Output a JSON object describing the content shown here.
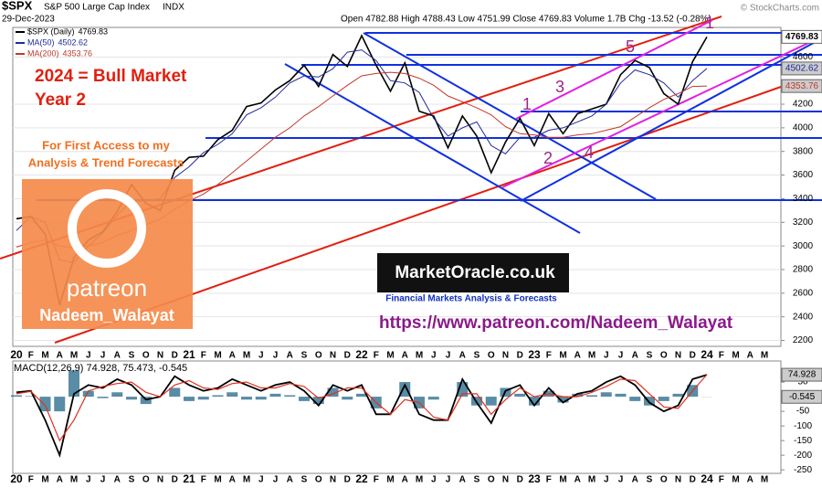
{
  "header": {
    "symbol": "$SPX",
    "name": "S&P 500 Large Cap Index",
    "exchange": "INDX",
    "date": "29-Dec-2023",
    "quote": "Open 4782.88  High 4788.43  Low 4751.99  Close 4769.83  Volume 1.7B  Chg -13.52 (-0.28%)",
    "credit": "© StockCharts.com"
  },
  "annotations": {
    "headline1": "2024 = Bull Market",
    "headline2": "Year 2",
    "promo1": "For First Access to my",
    "promo2": "Analysis & Trend Forecasts",
    "patreon": "patreon",
    "author": "Nadeem_Walayat",
    "logo": "MarketOracle.co.uk",
    "logo_sub": "Financial Markets Analysis & Forecasts",
    "url": "https://www.patreon.com/Nadeem_Walayat",
    "waves": [
      "1",
      "2",
      "3",
      "4",
      "5",
      "1"
    ]
  },
  "chart_data": [
    {
      "type": "line",
      "ylim": [
        2150,
        4850
      ],
      "yticks": [
        2200,
        2400,
        2600,
        2800,
        3000,
        3200,
        3400,
        3600,
        3800,
        4000,
        4200,
        4600
      ],
      "grid": true,
      "categories": [
        "20",
        "F",
        "M",
        "A",
        "M",
        "J",
        "J",
        "A",
        "S",
        "O",
        "N",
        "D",
        "21",
        "F",
        "M",
        "A",
        "M",
        "J",
        "J",
        "A",
        "S",
        "O",
        "N",
        "D",
        "22",
        "F",
        "M",
        "A",
        "M",
        "J",
        "J",
        "A",
        "S",
        "O",
        "N",
        "D",
        "23",
        "F",
        "M",
        "A",
        "M",
        "J",
        "J",
        "A",
        "S",
        "O",
        "N",
        "D",
        "24",
        "F",
        "M",
        "A",
        "M"
      ],
      "series": [
        {
          "name": "$SPX (Daily)",
          "color": "#000000",
          "values": [
            3230,
            3250,
            3100,
            2500,
            2900,
            3050,
            3120,
            3290,
            3520,
            3360,
            3300,
            3640,
            3750,
            3760,
            3900,
            3980,
            4180,
            4210,
            4320,
            4400,
            4530,
            4350,
            4620,
            4520,
            4780,
            4530,
            4310,
            4550,
            4140,
            4100,
            3830,
            4100,
            3930,
            3620,
            3880,
            4080,
            3850,
            4120,
            3950,
            4120,
            4160,
            4200,
            4450,
            4570,
            4510,
            4290,
            4200,
            4560,
            4769.83,
            null,
            null,
            null,
            null
          ]
        },
        {
          "name": "MA(50)",
          "color": "#1f2a9a",
          "values": [
            3130,
            3250,
            3200,
            2880,
            2860,
            3000,
            3110,
            3260,
            3380,
            3380,
            3400,
            3580,
            3670,
            3790,
            3860,
            3950,
            4110,
            4170,
            4260,
            4380,
            4440,
            4430,
            4500,
            4640,
            4660,
            4570,
            4400,
            4380,
            4300,
            4080,
            3930,
            4000,
            4050,
            3850,
            3780,
            3920,
            3920,
            3980,
            4000,
            4050,
            4100,
            4200,
            4380,
            4490,
            4450,
            4380,
            4260,
            4400,
            4502.62,
            null,
            null,
            null,
            null
          ]
        },
        {
          "name": "MA(200)",
          "color": "#c0392b",
          "values": [
            2990,
            3030,
            3050,
            3000,
            2980,
            3000,
            3030,
            3090,
            3130,
            3180,
            3230,
            3310,
            3380,
            3440,
            3520,
            3620,
            3720,
            3820,
            3920,
            4000,
            4100,
            4180,
            4270,
            4360,
            4440,
            4460,
            4470,
            4460,
            4420,
            4360,
            4270,
            4220,
            4170,
            4110,
            4010,
            3950,
            3940,
            3920,
            3920,
            3940,
            3950,
            3980,
            4010,
            4090,
            4170,
            4240,
            4290,
            4350,
            4353.76,
            null,
            null,
            null,
            null
          ]
        }
      ]
    },
    {
      "type": "macd",
      "title": "MACD(12,26,9) 74.928, 75.473, -0.545",
      "ylim": [
        -262,
        122
      ],
      "yticks": [
        50,
        -50,
        -100,
        -150,
        -200,
        -250
      ],
      "categories": [
        "20",
        "F",
        "M",
        "A",
        "M",
        "J",
        "J",
        "A",
        "S",
        "O",
        "N",
        "D",
        "21",
        "F",
        "M",
        "A",
        "M",
        "J",
        "J",
        "A",
        "S",
        "O",
        "N",
        "D",
        "22",
        "F",
        "M",
        "A",
        "M",
        "J",
        "J",
        "A",
        "S",
        "O",
        "N",
        "D",
        "23",
        "F",
        "M",
        "A",
        "M",
        "J",
        "J",
        "A",
        "S",
        "O",
        "N",
        "D",
        "24",
        "F",
        "M",
        "A",
        "M"
      ],
      "series": [
        {
          "name": "MACD",
          "color": "#000000",
          "values": [
            15,
            20,
            -80,
            -200,
            10,
            40,
            30,
            60,
            40,
            -10,
            0,
            70,
            40,
            20,
            30,
            60,
            40,
            20,
            40,
            50,
            20,
            -30,
            40,
            20,
            40,
            -60,
            -60,
            40,
            -60,
            -80,
            -80,
            60,
            -20,
            -90,
            20,
            40,
            -30,
            30,
            -20,
            10,
            20,
            50,
            70,
            40,
            -20,
            -50,
            -30,
            60,
            74.928,
            null,
            null,
            null,
            null
          ]
        },
        {
          "name": "Signal",
          "color": "#e03020",
          "values": [
            10,
            18,
            -30,
            -150,
            -80,
            20,
            35,
            45,
            50,
            15,
            0,
            40,
            55,
            30,
            25,
            45,
            50,
            30,
            30,
            45,
            35,
            -5,
            10,
            30,
            30,
            -20,
            -60,
            -10,
            -20,
            -70,
            -80,
            10,
            10,
            -60,
            -10,
            30,
            0,
            10,
            0,
            0,
            15,
            35,
            60,
            55,
            10,
            -35,
            -40,
            20,
            75.473,
            null,
            null,
            null,
            null
          ]
        },
        {
          "name": "Histogram",
          "color": "#2f6f8f",
          "style": "histogram",
          "values": [
            5,
            2,
            -50,
            -50,
            90,
            20,
            -5,
            15,
            -10,
            -25,
            0,
            30,
            -15,
            -10,
            5,
            15,
            -10,
            -10,
            10,
            5,
            -15,
            -25,
            30,
            -10,
            10,
            -40,
            0,
            50,
            -40,
            -10,
            0,
            50,
            -30,
            -30,
            30,
            10,
            -30,
            20,
            -20,
            10,
            5,
            15,
            10,
            -15,
            -30,
            -15,
            10,
            40,
            -0.545,
            null,
            null,
            null,
            null
          ]
        }
      ]
    }
  ]
}
